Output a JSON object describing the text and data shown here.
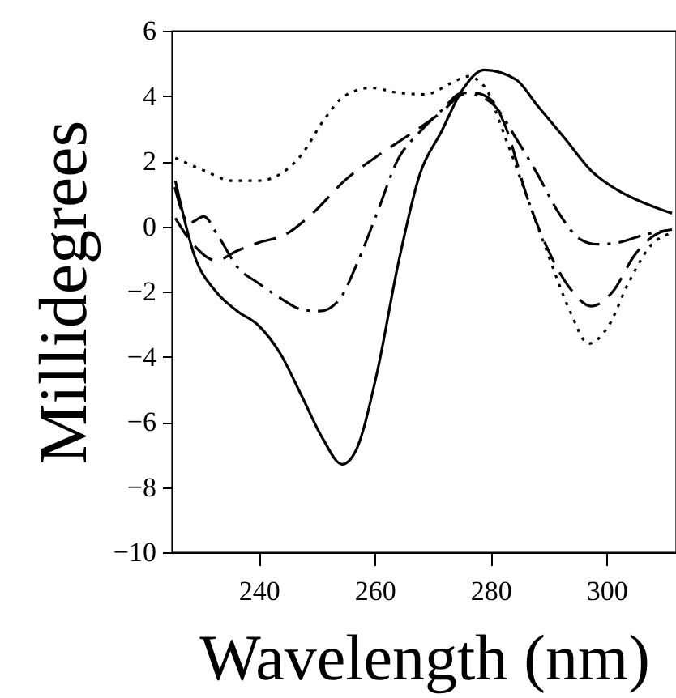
{
  "chart_data": {
    "type": "line",
    "xlabel": "Wavelength (nm)",
    "ylabel": "Millidegrees",
    "xlim": [
      225,
      312
    ],
    "ylim": [
      -10,
      6
    ],
    "xticks": [
      240,
      260,
      280,
      300
    ],
    "yticks": [
      -10,
      -8,
      -6,
      -4,
      -2,
      0,
      2,
      4,
      6
    ],
    "grid": false,
    "marker": "none",
    "series": [
      {
        "color": "#000000",
        "line_style": "solid",
        "x": [
          225.6,
          228.9,
          232.6,
          236.3,
          240,
          243.7,
          247.4,
          251,
          254.4,
          256.7,
          260.4,
          264,
          267.8,
          271.5,
          275.2,
          278.9,
          284.4,
          288.1,
          292.8,
          297.4,
          302,
          306.7,
          311.3
        ],
        "values": [
          1.4,
          -0.9,
          -2.0,
          -2.6,
          -3.05,
          -3.9,
          -5.2,
          -6.5,
          -7.3,
          -6.9,
          -4.5,
          -1.2,
          1.6,
          2.9,
          4.2,
          4.8,
          4.5,
          3.7,
          2.7,
          1.7,
          1.1,
          0.7,
          0.4
        ]
      },
      {
        "color": "#000000",
        "line_style": "dotted",
        "x": [
          225.6,
          230.7,
          235.4,
          240,
          243.7,
          247.4,
          251,
          254.8,
          259.4,
          264,
          268.7,
          273.3,
          276.1,
          278.9,
          282.6,
          286.3,
          290,
          293.7,
          296.9,
          300.2,
          303.9,
          307.6,
          311.3
        ],
        "values": [
          2.1,
          1.7,
          1.4,
          1.4,
          1.6,
          2.2,
          3.2,
          4.0,
          4.25,
          4.1,
          4.05,
          4.4,
          4.6,
          4.3,
          2.7,
          0.9,
          -0.9,
          -2.6,
          -3.6,
          -3.1,
          -1.7,
          -0.6,
          -0.2
        ]
      },
      {
        "color": "#000000",
        "line_style": "dashed",
        "x": [
          225.6,
          228.9,
          232.6,
          236.3,
          240,
          244.6,
          249.3,
          254.8,
          260.4,
          265.9,
          271.5,
          275.2,
          277,
          280,
          282.6,
          286.3,
          290,
          293.7,
          297.4,
          301.1,
          304.8,
          308.5,
          311.3
        ],
        "values": [
          0.25,
          -0.6,
          -1.05,
          -0.75,
          -0.5,
          -0.25,
          0.4,
          1.4,
          2.15,
          2.8,
          3.5,
          4.05,
          4.1,
          3.9,
          3.05,
          0.9,
          -0.75,
          -1.9,
          -2.45,
          -2.0,
          -0.9,
          -0.25,
          -0.1
        ]
      },
      {
        "color": "#000000",
        "line_style": "dashdot",
        "x": [
          225.5,
          228,
          230.5,
          233,
          236.3,
          240,
          243.7,
          247.4,
          250.6,
          253.9,
          256.7,
          260.4,
          264,
          267.8,
          271.5,
          275.2,
          277,
          280.7,
          284.4,
          288.1,
          291.8,
          295.5,
          298.3,
          302,
          306.7,
          311.3
        ],
        "values": [
          1.2,
          0.1,
          0.3,
          -0.3,
          -1.25,
          -1.75,
          -2.2,
          -2.55,
          -2.6,
          -2.25,
          -1.25,
          0.4,
          2.05,
          2.9,
          3.55,
          4.1,
          4.05,
          3.7,
          2.7,
          1.6,
          0.4,
          -0.4,
          -0.55,
          -0.5,
          -0.25,
          -0.1
        ]
      }
    ]
  }
}
